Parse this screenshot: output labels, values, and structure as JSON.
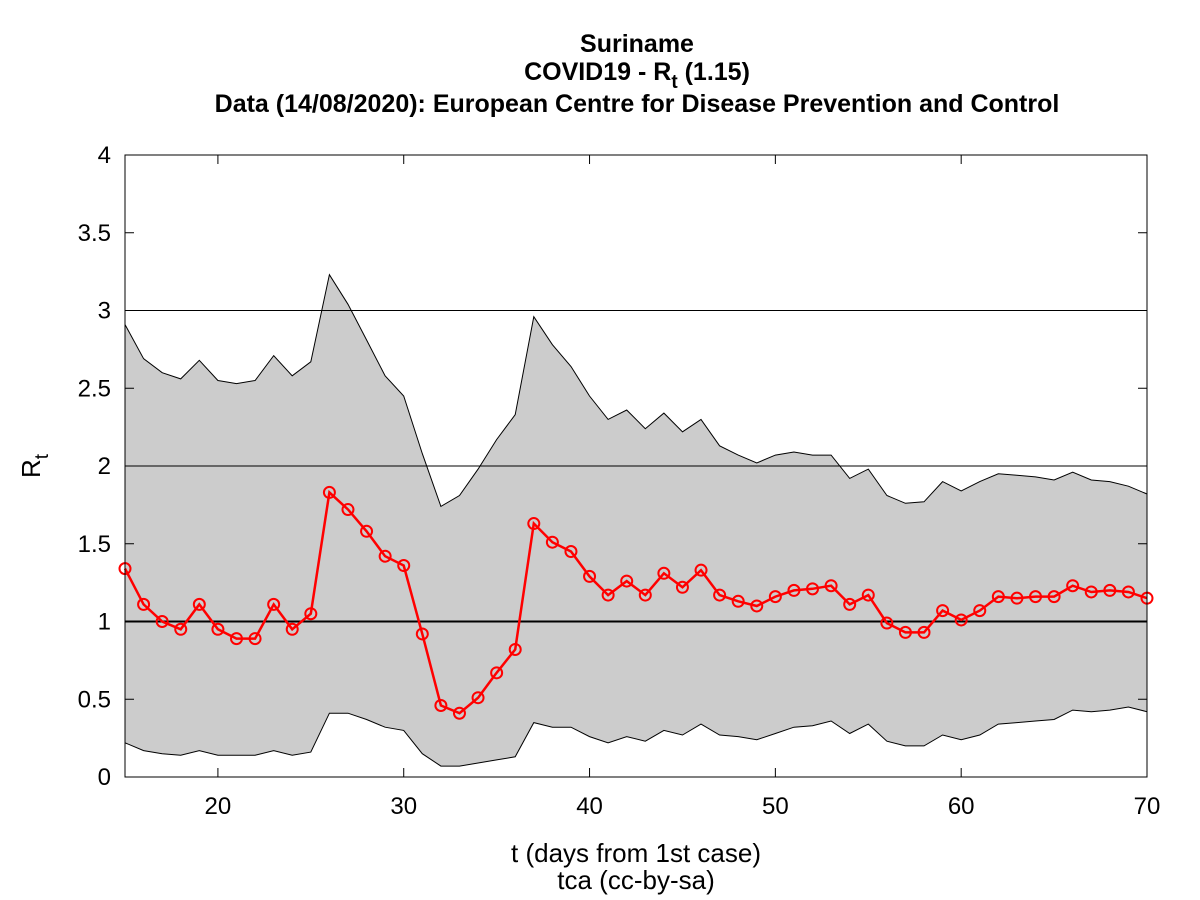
{
  "chart_data": {
    "type": "line",
    "title": {
      "line1": "Suriname",
      "line2_prefix": "COVID19 - R",
      "line2_sub": "t",
      "line2_suffix": " (1.15)",
      "line3": "Data (14/08/2020): European Centre for Disease Prevention and Control"
    },
    "xlabel": "t (days from 1st case)",
    "ylabel_main": "R",
    "ylabel_sub": "t",
    "footer": "tca (cc-by-sa)",
    "xlim": [
      15,
      70
    ],
    "ylim": [
      0,
      4
    ],
    "xticks": [
      20,
      30,
      40,
      50,
      60,
      70
    ],
    "yticks": [
      0,
      0.5,
      1,
      1.5,
      2,
      2.5,
      3,
      3.5,
      4
    ],
    "ytick_labels": [
      "0",
      "0.5",
      "1",
      "1.5",
      "2",
      "2.5",
      "3",
      "3.5",
      "4"
    ],
    "grid_y": [
      2,
      3
    ],
    "reference_line": 1,
    "colors": {
      "line": "#ff0000",
      "band": "#cccccc",
      "axis": "#000000"
    },
    "x": [
      15,
      16,
      17,
      18,
      19,
      20,
      21,
      22,
      23,
      24,
      25,
      26,
      27,
      28,
      29,
      30,
      31,
      32,
      33,
      34,
      35,
      36,
      37,
      38,
      39,
      40,
      41,
      42,
      43,
      44,
      45,
      46,
      47,
      48,
      49,
      50,
      51,
      52,
      53,
      54,
      55,
      56,
      57,
      58,
      59,
      60,
      61,
      62,
      63,
      64,
      65,
      66,
      67,
      68,
      69,
      70
    ],
    "series": [
      {
        "values": [
          1.34,
          1.11,
          1.0,
          0.95,
          1.11,
          0.95,
          0.89,
          0.89,
          1.11,
          0.95,
          1.05,
          1.83,
          1.72,
          1.58,
          1.42,
          1.36,
          0.92,
          0.46,
          0.41,
          0.51,
          0.67,
          0.82,
          1.63,
          1.51,
          1.45,
          1.29,
          1.17,
          1.26,
          1.17,
          1.31,
          1.22,
          1.33,
          1.17,
          1.13,
          1.1,
          1.16,
          1.2,
          1.21,
          1.23,
          1.11,
          1.17,
          0.99,
          0.93,
          0.93,
          1.07,
          1.01,
          1.07,
          1.16,
          1.15,
          1.16,
          1.16,
          1.23,
          1.19,
          1.2,
          1.19,
          1.15
        ]
      }
    ],
    "band_upper": [
      2.91,
      2.69,
      2.6,
      2.56,
      2.68,
      2.55,
      2.53,
      2.55,
      2.71,
      2.58,
      2.67,
      3.23,
      3.04,
      2.81,
      2.58,
      2.45,
      2.08,
      1.74,
      1.81,
      1.98,
      2.17,
      2.33,
      2.96,
      2.78,
      2.64,
      2.45,
      2.3,
      2.36,
      2.24,
      2.34,
      2.22,
      2.3,
      2.13,
      2.07,
      2.02,
      2.07,
      2.09,
      2.07,
      2.07,
      1.92,
      1.98,
      1.81,
      1.76,
      1.77,
      1.9,
      1.84,
      1.9,
      1.95,
      1.94,
      1.93,
      1.91,
      1.96,
      1.91,
      1.9,
      1.87,
      1.82
    ],
    "band_lower": [
      0.22,
      0.17,
      0.15,
      0.14,
      0.17,
      0.14,
      0.14,
      0.14,
      0.17,
      0.14,
      0.16,
      0.41,
      0.41,
      0.37,
      0.32,
      0.3,
      0.15,
      0.07,
      0.07,
      0.09,
      0.11,
      0.13,
      0.35,
      0.32,
      0.32,
      0.26,
      0.22,
      0.26,
      0.23,
      0.3,
      0.27,
      0.34,
      0.27,
      0.26,
      0.24,
      0.28,
      0.32,
      0.33,
      0.36,
      0.28,
      0.34,
      0.23,
      0.2,
      0.2,
      0.27,
      0.24,
      0.27,
      0.34,
      0.35,
      0.36,
      0.37,
      0.43,
      0.42,
      0.43,
      0.45,
      0.42
    ]
  }
}
